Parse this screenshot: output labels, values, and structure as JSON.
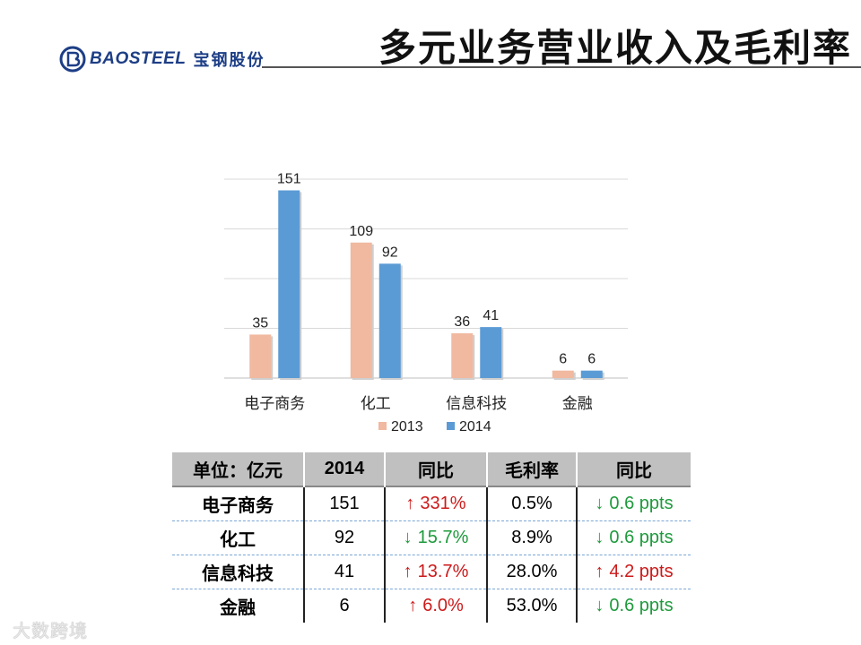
{
  "header": {
    "logo_en": "BAOSTEEL",
    "logo_cn": "宝钢股份",
    "title": "多元业务营业收入及毛利率"
  },
  "colors": {
    "series_2013": "#f0b9a0",
    "series_2014": "#5b9bd5",
    "up": "#cc1a1a",
    "down": "#1e9a3c",
    "brand": "#1d3e86"
  },
  "chart_data": {
    "type": "bar",
    "title": "",
    "categories": [
      "电子商务",
      "化工",
      "信息科技",
      "金融"
    ],
    "series": [
      {
        "name": "2013",
        "values": [
          35,
          109,
          36,
          6
        ]
      },
      {
        "name": "2014",
        "values": [
          151,
          92,
          41,
          6
        ]
      }
    ],
    "ylim": [
      0,
      160
    ],
    "grid": true,
    "legend": "bottom"
  },
  "table": {
    "headers": [
      "单位：亿元",
      "2014",
      "同比",
      "毛利率",
      "同比"
    ],
    "rows": [
      {
        "name": "电子商务",
        "revenue": "151",
        "yoy_dir": "up",
        "yoy_arrow": "↑",
        "yoy": "331%",
        "margin": "0.5%",
        "margin_dir": "down",
        "margin_arrow": "↓",
        "margin_chg": "0.6 ppts"
      },
      {
        "name": "化工",
        "revenue": "92",
        "yoy_dir": "down",
        "yoy_arrow": "↓",
        "yoy": "15.7%",
        "margin": "8.9%",
        "margin_dir": "down",
        "margin_arrow": "↓",
        "margin_chg": "0.6 ppts"
      },
      {
        "name": "信息科技",
        "revenue": "41",
        "yoy_dir": "up",
        "yoy_arrow": "↑",
        "yoy": "13.7%",
        "margin": "28.0%",
        "margin_dir": "up",
        "margin_arrow": "↑",
        "margin_chg": "4.2 ppts"
      },
      {
        "name": "金融",
        "revenue": "6",
        "yoy_dir": "up",
        "yoy_arrow": "↑",
        "yoy": "6.0%",
        "margin": "53.0%",
        "margin_dir": "down",
        "margin_arrow": "↓",
        "margin_chg": "0.6 ppts"
      }
    ]
  },
  "watermark": "大数跨境"
}
